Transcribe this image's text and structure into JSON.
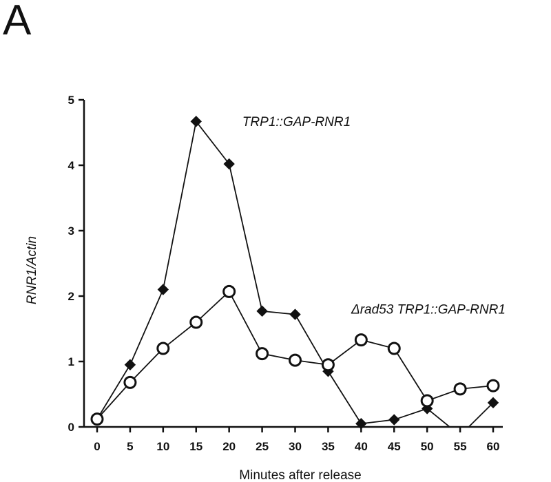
{
  "panel_label": "A",
  "chart_data": {
    "type": "line",
    "xlabel": "Minutes after release",
    "ylabel": "RNR1/Actin",
    "xlim": [
      0,
      60
    ],
    "ylim": [
      0,
      5
    ],
    "x_ticks": [
      0,
      5,
      10,
      15,
      20,
      25,
      30,
      35,
      40,
      45,
      50,
      55,
      60
    ],
    "y_ticks": [
      0,
      1,
      2,
      3,
      4,
      5
    ],
    "grid": false,
    "legend": "none",
    "series": [
      {
        "name": "TRP1::GAP-RNR1",
        "marker": "filled-diamond",
        "color": "#111111",
        "points": [
          {
            "x": 0,
            "y": 0.12
          },
          {
            "x": 5,
            "y": 0.95
          },
          {
            "x": 10,
            "y": 2.1
          },
          {
            "x": 15,
            "y": 4.67
          },
          {
            "x": 20,
            "y": 4.02
          },
          {
            "x": 25,
            "y": 1.77
          },
          {
            "x": 30,
            "y": 1.72
          },
          {
            "x": 35,
            "y": 0.85
          },
          {
            "x": 40,
            "y": 0.05
          },
          {
            "x": 45,
            "y": 0.11
          },
          {
            "x": 50,
            "y": 0.28
          },
          {
            "x": 55,
            "y": -0.13
          },
          {
            "x": 60,
            "y": 0.37
          }
        ]
      },
      {
        "name": "Δrad53 TRP1::GAP-RNR1",
        "marker": "open-circle",
        "color": "#111111",
        "points": [
          {
            "x": 0,
            "y": 0.12
          },
          {
            "x": 5,
            "y": 0.68
          },
          {
            "x": 10,
            "y": 1.2
          },
          {
            "x": 15,
            "y": 1.6
          },
          {
            "x": 20,
            "y": 2.07
          },
          {
            "x": 25,
            "y": 1.12
          },
          {
            "x": 30,
            "y": 1.02
          },
          {
            "x": 35,
            "y": 0.95
          },
          {
            "x": 40,
            "y": 1.33
          },
          {
            "x": 45,
            "y": 1.2
          },
          {
            "x": 50,
            "y": 0.4
          },
          {
            "x": 55,
            "y": 0.58
          },
          {
            "x": 60,
            "y": 0.63
          }
        ]
      }
    ]
  }
}
